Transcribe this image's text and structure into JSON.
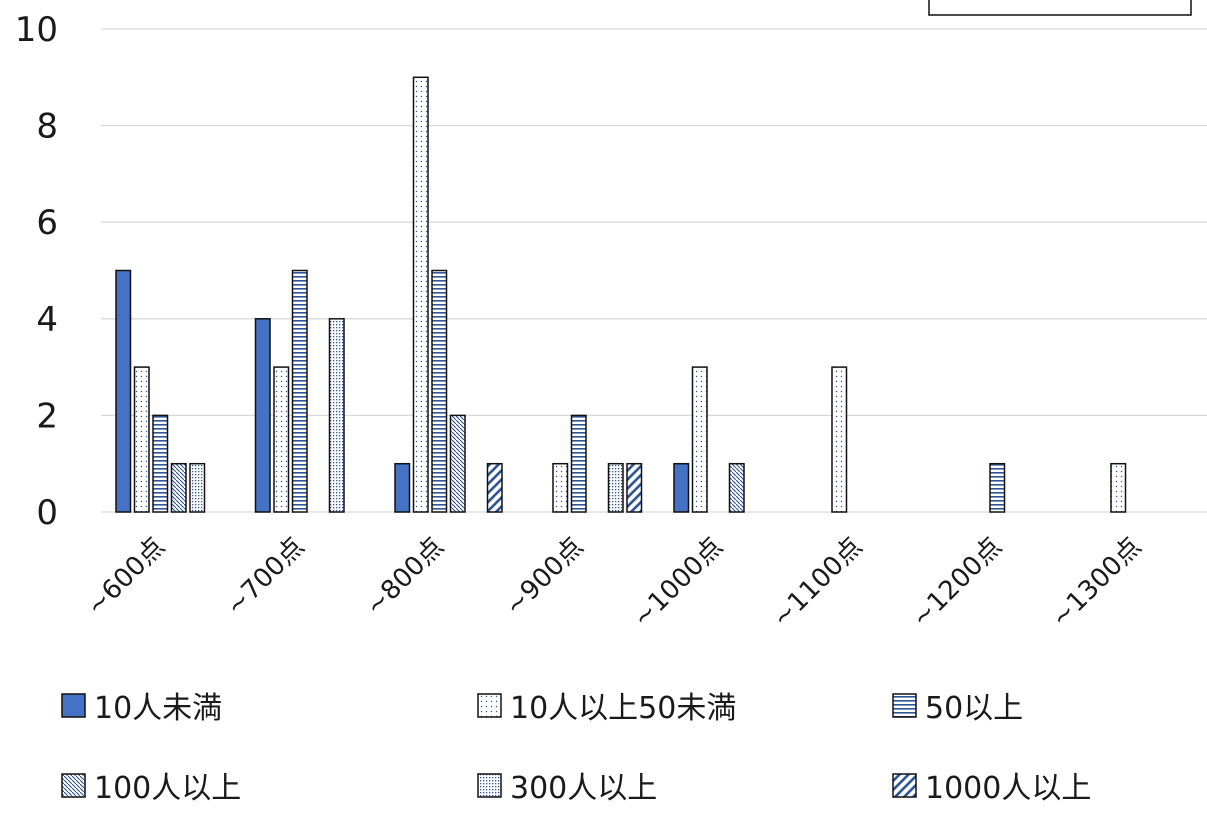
{
  "chart_data": {
    "type": "bar",
    "categories": [
      "~600点",
      "~700点",
      "~800点",
      "~900点",
      "~1000点",
      "~1100点",
      "~1200点",
      "~1300点"
    ],
    "series": [
      {
        "name": "10人未満",
        "values": [
          5,
          4,
          1,
          0,
          1,
          0,
          0,
          0
        ]
      },
      {
        "name": "10人以上50未満",
        "values": [
          3,
          3,
          9,
          1,
          3,
          3,
          0,
          1
        ]
      },
      {
        "name": "50以上",
        "values": [
          2,
          5,
          5,
          2,
          0,
          0,
          1,
          0
        ]
      },
      {
        "name": "100人以上",
        "values": [
          1,
          0,
          2,
          0,
          1,
          0,
          0,
          0
        ]
      },
      {
        "name": "300人以上",
        "values": [
          1,
          4,
          0,
          1,
          0,
          0,
          0,
          0
        ]
      },
      {
        "name": "1000人以上",
        "values": [
          0,
          0,
          1,
          1,
          0,
          0,
          0,
          0
        ]
      }
    ],
    "yticks": [
      "0",
      "2",
      "4",
      "6",
      "8",
      "10"
    ],
    "ylim": [
      0,
      10
    ],
    "grid": true,
    "legend_position": "bottom",
    "colors": {
      "solid_blue": "#4472c4",
      "pattern_blue": "#2f5597",
      "grid": "#d9d9d9"
    }
  }
}
